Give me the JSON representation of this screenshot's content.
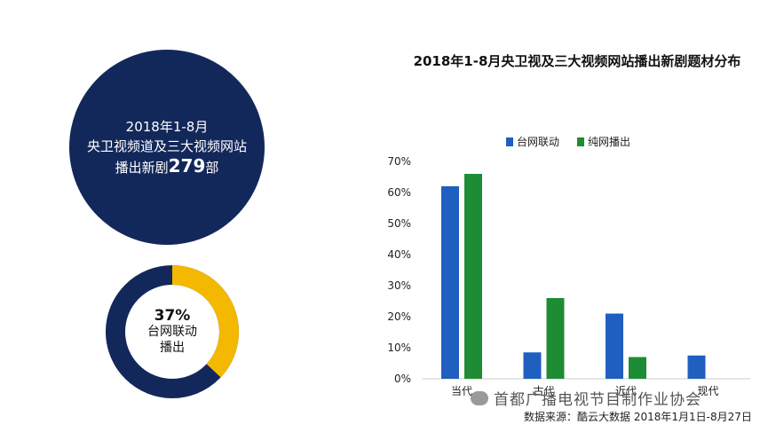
{
  "info_circle": {
    "line1": "2018年1-8月",
    "line2": "央卫视频道及三大视频网站",
    "line3_prefix": "播出新剧",
    "count": "279",
    "line3_suffix": "部"
  },
  "donut": {
    "percent_label": "37%",
    "fraction": 0.37,
    "label_line1": "台网联动",
    "label_line2": "播出",
    "colors": {
      "ring": "#13285a",
      "highlight": "#f5b800"
    }
  },
  "chart_title": "2018年1-8月央卫视及三大视频网站播出新剧题材分布",
  "chart_data": {
    "type": "bar",
    "categories": [
      "当代",
      "古代",
      "近代",
      "现代"
    ],
    "series": [
      {
        "name": "台网联动",
        "color": "#1f5fbf",
        "values": [
          62,
          8.5,
          21,
          7.5
        ]
      },
      {
        "name": "纯网播出",
        "color": "#1e8c34",
        "values": [
          66,
          26,
          7,
          0
        ]
      }
    ],
    "ylim": [
      0,
      70
    ],
    "yticks": [
      "0%",
      "10%",
      "20%",
      "30%",
      "40%",
      "50%",
      "60%",
      "70%"
    ],
    "legend_position": "top",
    "grid": false
  },
  "watermark": "首都广播电视节目制作业协会",
  "source": "数据来源：酷云大数据 2018年1月1日-8月27日"
}
